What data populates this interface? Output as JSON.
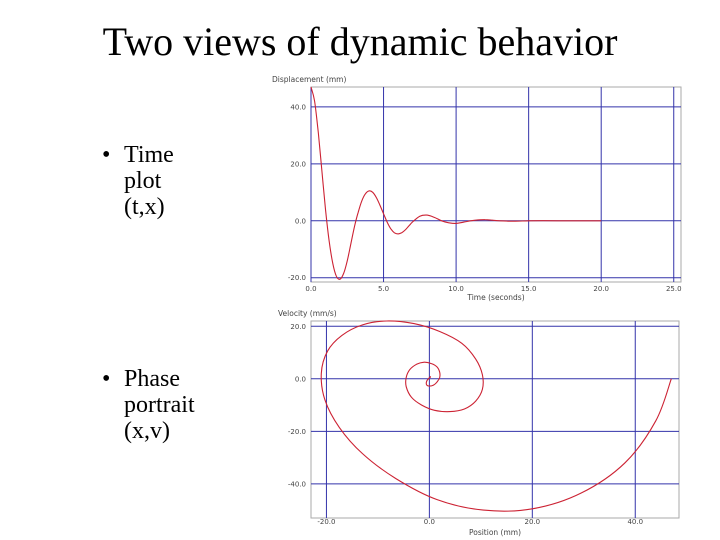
{
  "slide": {
    "title": "Two views of dynamic behavior",
    "bullet1": {
      "marker": "•",
      "line1": "Time",
      "line2": "plot",
      "line3": "(t,x)"
    },
    "bullet2": {
      "marker": "•",
      "line1": "Phase",
      "line2": "portrait",
      "line3": "(x,v)"
    }
  },
  "colors": {
    "curve": "#cc2233",
    "grid": "#3333aa",
    "axis_text": "#444444"
  },
  "chart_data": [
    {
      "type": "line",
      "title": "",
      "ylabel": "Displacement (mm)",
      "xlabel": "Time (seconds)",
      "xlim": [
        0,
        25.5
      ],
      "ylim": [
        -21.5,
        47
      ],
      "xticks": [
        0,
        5,
        10,
        15,
        20,
        25
      ],
      "yticks": [
        40,
        20,
        0,
        -20
      ],
      "xtick_labels": [
        "0.0",
        "5.0",
        "10.0",
        "15.0",
        "20.0",
        "25.0"
      ],
      "ytick_labels": [
        "40.0",
        "20.0",
        "0.0",
        "-20.0"
      ],
      "grid": true,
      "series": [
        {
          "x": [
            0,
            0.25,
            0.5,
            0.75,
            1.0,
            1.25,
            1.5,
            1.75,
            2.0,
            2.25,
            2.5,
            2.75,
            3.0,
            3.25,
            3.5,
            3.75,
            4.0,
            4.25,
            4.5,
            4.75,
            5.0,
            5.25,
            5.5,
            5.75,
            6.0,
            6.25,
            6.5,
            6.75,
            7.0,
            7.5,
            8.0,
            8.5,
            9.0,
            9.5,
            10.0,
            10.5,
            11.0,
            11.5,
            12.0,
            12.5,
            13.0,
            13.5,
            14.0,
            15.0,
            16.0,
            17.0,
            18.0,
            19.0,
            20.0
          ],
          "y": [
            47.0,
            42.0,
            31.0,
            17.5,
            4.0,
            -7.0,
            -15.0,
            -19.5,
            -20.5,
            -18.5,
            -14.0,
            -8.0,
            -2.0,
            3.0,
            7.0,
            9.5,
            10.5,
            10.0,
            8.2,
            5.5,
            2.5,
            -0.5,
            -2.8,
            -4.2,
            -4.6,
            -4.2,
            -3.2,
            -1.8,
            -0.4,
            1.6,
            2.0,
            1.2,
            0.0,
            -0.7,
            -0.9,
            -0.5,
            0.0,
            0.3,
            0.4,
            0.2,
            0.0,
            -0.1,
            -0.15,
            0.0,
            0.05,
            0.0,
            0.0,
            0.0,
            0.0
          ]
        }
      ]
    },
    {
      "type": "line",
      "title": "",
      "ylabel": "Velocity (mm/s)",
      "xlabel": "Position (mm)",
      "xlim": [
        -23,
        48.5
      ],
      "ylim": [
        -53,
        22
      ],
      "xticks": [
        -20,
        0,
        20,
        40
      ],
      "yticks": [
        20,
        0,
        -20,
        -40
      ],
      "xtick_labels": [
        "-20.0",
        "0.0",
        "20.0",
        "40.0"
      ],
      "ytick_labels": [
        "20.0",
        "0.0",
        "-20.0",
        "-40.0"
      ],
      "grid": true,
      "series": [
        {
          "x": [
            47.0,
            44.0,
            38.0,
            29.5,
            20.0,
            10.5,
            1.5,
            -6.5,
            -13.0,
            -17.5,
            -20.3,
            -21.0,
            -19.8,
            -17.0,
            -13.0,
            -8.3,
            -3.0,
            2.0,
            6.3,
            9.0,
            10.3,
            10.3,
            9.0,
            6.8,
            4.0,
            1.0,
            -1.5,
            -3.5,
            -4.5,
            -4.5,
            -3.8,
            -2.5,
            -1.0,
            0.4,
            1.5,
            2.0,
            2.0,
            1.5,
            0.8,
            0.0,
            -0.5,
            -0.6,
            -0.4,
            0.0,
            0.2,
            0.1
          ],
          "y": [
            0.0,
            -16.0,
            -32.0,
            -43.5,
            -49.5,
            -50.0,
            -46.0,
            -38.0,
            -28.5,
            -18.5,
            -8.0,
            2.0,
            10.5,
            16.5,
            20.5,
            22.0,
            21.0,
            18.0,
            13.5,
            7.5,
            1.5,
            -4.0,
            -8.5,
            -11.5,
            -12.5,
            -12.0,
            -10.0,
            -7.0,
            -3.0,
            0.5,
            3.5,
            5.5,
            6.3,
            5.8,
            4.5,
            2.5,
            0.5,
            -1.2,
            -2.4,
            -2.8,
            -2.4,
            -1.5,
            -0.5,
            0.4,
            0.8,
            0.3
          ]
        }
      ]
    }
  ]
}
